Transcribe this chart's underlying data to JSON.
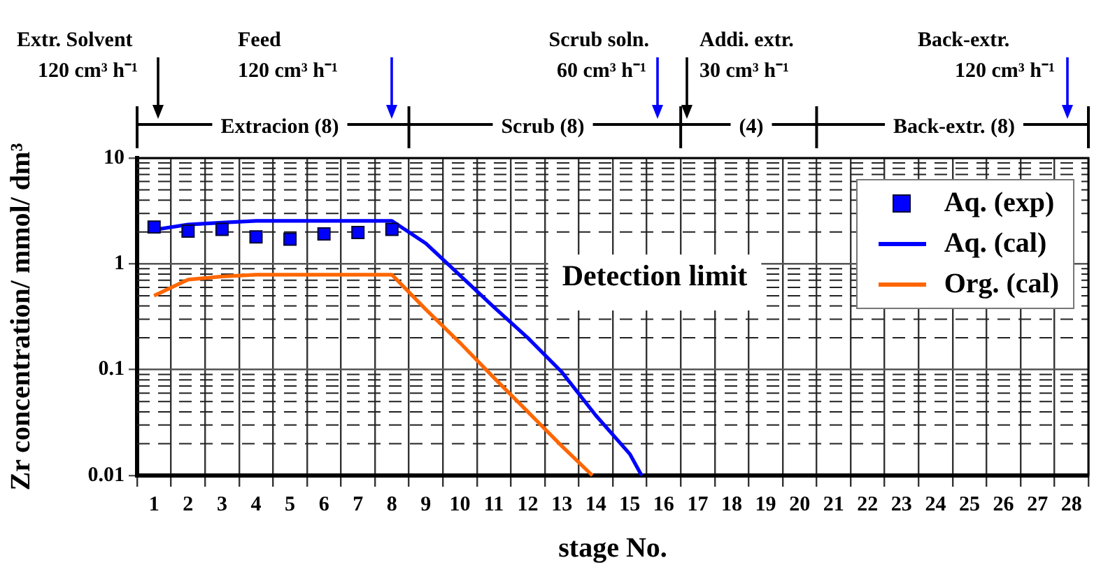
{
  "chart_data": {
    "type": "line",
    "xlabel": "stage No.",
    "ylabel": "Zr concentration/ mmol/ dm³",
    "xlim": [
      0.5,
      28.5
    ],
    "xticks": [
      {
        "value": 0.5,
        "label": null
      },
      1,
      {
        "value": 1.5,
        "label": null
      },
      2,
      {
        "value": 2.5,
        "label": null
      },
      3,
      {
        "value": 3.5,
        "label": null
      },
      4,
      {
        "value": 4.5,
        "label": null
      },
      5,
      {
        "value": 5.5,
        "label": null
      },
      6,
      {
        "value": 6.5,
        "label": null
      },
      7,
      {
        "value": 7.5,
        "label": null
      },
      8,
      {
        "value": 8.5,
        "label": null
      },
      9,
      {
        "value": 9.5,
        "label": null
      },
      10,
      {
        "value": 10.5,
        "label": null
      },
      11,
      {
        "value": 11.5,
        "label": null
      },
      12,
      {
        "value": 12.5,
        "label": null
      },
      13,
      {
        "value": 13.5,
        "label": null
      },
      14,
      {
        "value": 14.5,
        "label": null
      },
      15,
      {
        "value": 15.5,
        "label": null
      },
      16,
      {
        "value": 16.5,
        "label": null
      },
      17,
      {
        "value": 17.5,
        "label": null
      },
      18,
      {
        "value": 18.5,
        "label": null
      },
      19,
      {
        "value": 19.5,
        "label": null
      },
      20,
      {
        "value": 20.5,
        "label": null
      },
      21,
      {
        "value": 21.5,
        "label": null
      },
      22,
      {
        "value": 22.5,
        "label": null
      },
      23,
      {
        "value": 23.5,
        "label": null
      },
      24,
      {
        "value": 24.5,
        "label": null
      },
      25,
      {
        "value": 25.5,
        "label": null
      },
      26,
      {
        "value": 26.5,
        "label": null
      },
      27,
      {
        "value": 27.5,
        "label": null
      },
      28,
      {
        "value": 28.5,
        "label": null
      }
    ],
    "ylim": [
      0.01,
      10
    ],
    "yticks": [
      0.01,
      0.1,
      1,
      10
    ],
    "log": "y",
    "grid": true,
    "legend": "top right",
    "series": [
      {
        "name": "Aq. (exp)",
        "type": "scatter",
        "marker": "square",
        "color": "#0000ff",
        "x": [
          1,
          2,
          3,
          4,
          5,
          6,
          7,
          8
        ],
        "values": [
          2.23,
          2.04,
          2.12,
          1.8,
          1.71,
          1.92,
          1.98,
          2.12
        ]
      },
      {
        "name": "Aq. (cal)",
        "type": "line",
        "marker": "none",
        "color": "#0000ff",
        "x": [
          1,
          2,
          3,
          4,
          5,
          6,
          7,
          8,
          9,
          10,
          11,
          12,
          13,
          14,
          15,
          15.35
        ],
        "values": [
          2.1,
          2.35,
          2.45,
          2.55,
          2.55,
          2.55,
          2.55,
          2.55,
          1.56,
          0.78,
          0.39,
          0.2,
          0.095,
          0.037,
          0.016,
          0.01
        ]
      },
      {
        "name": "Org. (cal)",
        "type": "line",
        "marker": "none",
        "color": "#ff6600",
        "x": [
          1,
          2,
          3,
          4,
          5,
          6,
          7,
          8,
          9,
          10,
          11,
          12,
          13,
          13.9
        ],
        "values": [
          0.5,
          0.71,
          0.76,
          0.79,
          0.79,
          0.79,
          0.79,
          0.79,
          0.37,
          0.18,
          0.084,
          0.04,
          0.019,
          0.01
        ]
      }
    ],
    "annotations": [
      "Extr. Solvent\n120 cm³ h⁻¹",
      "Feed\n120 cm³ h⁻¹",
      "Scrub soln.\n60 cm³ h⁻¹",
      "Addi. extr.\n30 cm³ h⁻¹",
      "Back-extr.\n120 cm³ h⁻¹",
      "Extracion (8)",
      "Scrub (8)",
      "(4)",
      "Back-extr. (8)",
      "Detection limit"
    ]
  }
}
